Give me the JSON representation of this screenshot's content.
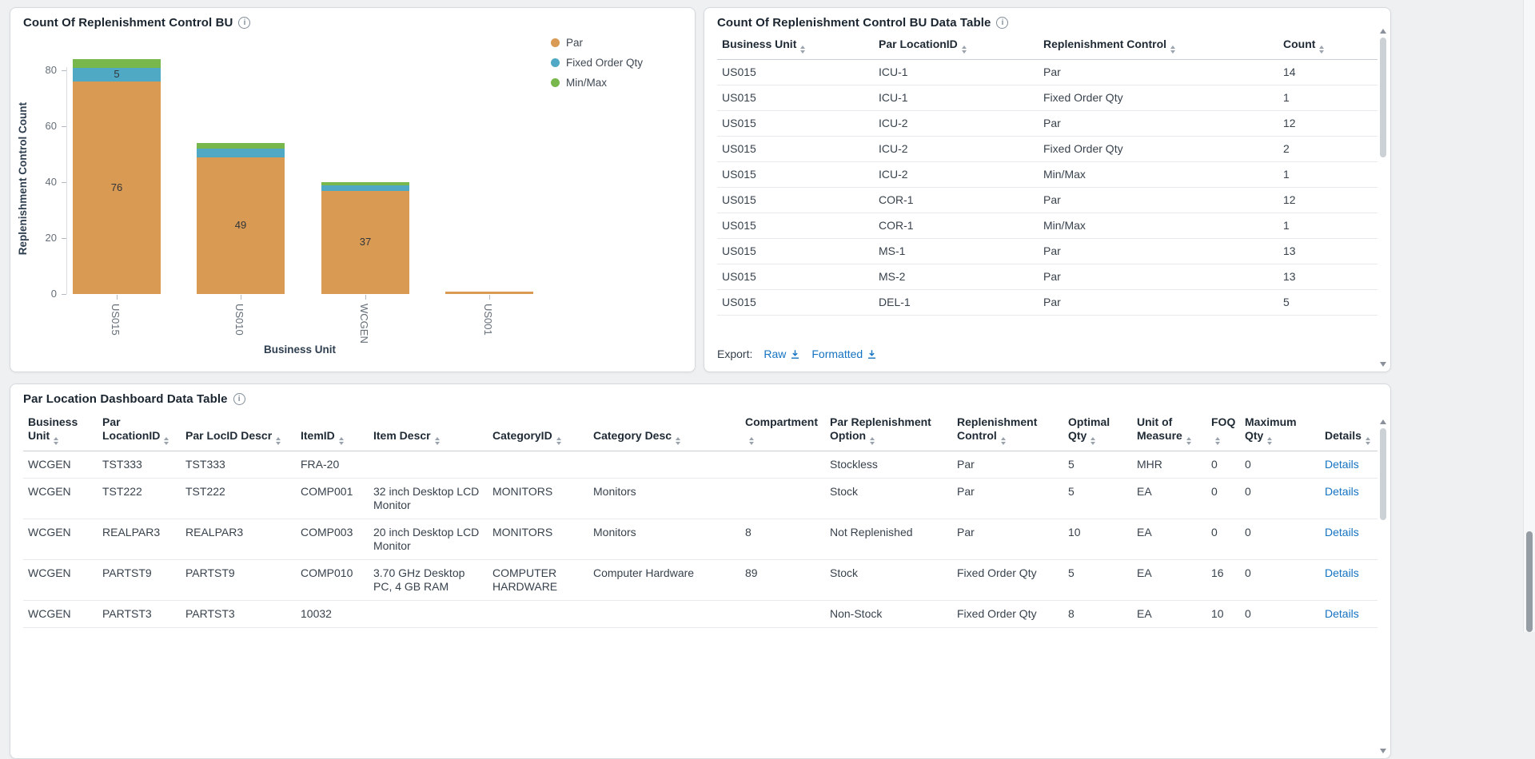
{
  "colors": {
    "link": "#1673c1",
    "series_par": "#d99a53",
    "series_fixed_order_qty": "#4fa9c5",
    "series_min_max": "#77b74b",
    "page_background": "#eef0f2"
  },
  "chart_card": {
    "title": "Count Of Replenishment Control BU"
  },
  "chart_data": {
    "type": "bar",
    "stacked": true,
    "title": "Count Of Replenishment Control BU",
    "xlabel": "Business Unit",
    "ylabel": "Replenishment Control Count",
    "ylim": [
      0,
      80
    ],
    "yticks": [
      0,
      20,
      40,
      60,
      80
    ],
    "categories": [
      "US015",
      "US010",
      "WCGEN",
      "US001"
    ],
    "series": [
      {
        "name": "Par",
        "color": "#d99a53",
        "values": [
          76,
          49,
          37,
          1
        ]
      },
      {
        "name": "Fixed Order Qty",
        "color": "#4fa9c5",
        "values": [
          5,
          3,
          2,
          0
        ]
      },
      {
        "name": "Min/Max",
        "color": "#77b74b",
        "values": [
          3,
          2,
          1,
          0
        ]
      }
    ],
    "visible_bar_labels": [
      "76",
      "5",
      "49",
      "37"
    ],
    "legend_position": "top-right",
    "grid": false
  },
  "bu_table_card": {
    "title": "Count Of Replenishment Control BU Data Table",
    "columns": [
      "Business Unit",
      "Par LocationID",
      "Replenishment Control",
      "Count"
    ],
    "rows": [
      [
        "US015",
        "ICU-1",
        "Par",
        "14"
      ],
      [
        "US015",
        "ICU-1",
        "Fixed Order Qty",
        "1"
      ],
      [
        "US015",
        "ICU-2",
        "Par",
        "12"
      ],
      [
        "US015",
        "ICU-2",
        "Fixed Order Qty",
        "2"
      ],
      [
        "US015",
        "ICU-2",
        "Min/Max",
        "1"
      ],
      [
        "US015",
        "COR-1",
        "Par",
        "12"
      ],
      [
        "US015",
        "COR-1",
        "Min/Max",
        "1"
      ],
      [
        "US015",
        "MS-1",
        "Par",
        "13"
      ],
      [
        "US015",
        "MS-2",
        "Par",
        "13"
      ],
      [
        "US015",
        "DEL-1",
        "Par",
        "5"
      ]
    ],
    "export": {
      "label": "Export:",
      "raw": "Raw",
      "formatted": "Formatted"
    }
  },
  "par_table_card": {
    "title": "Par Location Dashboard Data Table",
    "columns": [
      "Business Unit",
      "Par LocationID",
      "Par LocID Descr",
      "ItemID",
      "Item Descr",
      "CategoryID",
      "Category Desc",
      "Compartment",
      "Par Replenishment Option",
      "Replenishment Control",
      "Optimal Qty",
      "Unit of Measure",
      "FOQ",
      "Maximum Qty",
      "Details"
    ],
    "rows": [
      [
        "WCGEN",
        "TST333",
        "TST333",
        "FRA-20",
        "",
        "",
        "",
        "",
        "Stockless",
        "Par",
        "5",
        "MHR",
        "0",
        "0",
        "Details"
      ],
      [
        "WCGEN",
        "TST222",
        "TST222",
        "COMP001",
        "32 inch Desktop LCD Monitor",
        "MONITORS",
        "Monitors",
        "",
        "Stock",
        "Par",
        "5",
        "EA",
        "0",
        "0",
        "Details"
      ],
      [
        "WCGEN",
        "REALPAR3",
        "REALPAR3",
        "COMP003",
        "20 inch Desktop LCD Monitor",
        "MONITORS",
        "Monitors",
        "8",
        "Not Replenished",
        "Par",
        "10",
        "EA",
        "0",
        "0",
        "Details"
      ],
      [
        "WCGEN",
        "PARTST9",
        "PARTST9",
        "COMP010",
        "3.70 GHz Desktop PC, 4 GB RAM",
        "COMPUTER HARDWARE",
        "Computer Hardware",
        "89",
        "Stock",
        "Fixed Order Qty",
        "5",
        "EA",
        "16",
        "0",
        "Details"
      ],
      [
        "WCGEN",
        "PARTST3",
        "PARTST3",
        "10032",
        "",
        "",
        "",
        "",
        "Non-Stock",
        "Fixed Order Qty",
        "8",
        "EA",
        "10",
        "0",
        "Details"
      ]
    ]
  }
}
